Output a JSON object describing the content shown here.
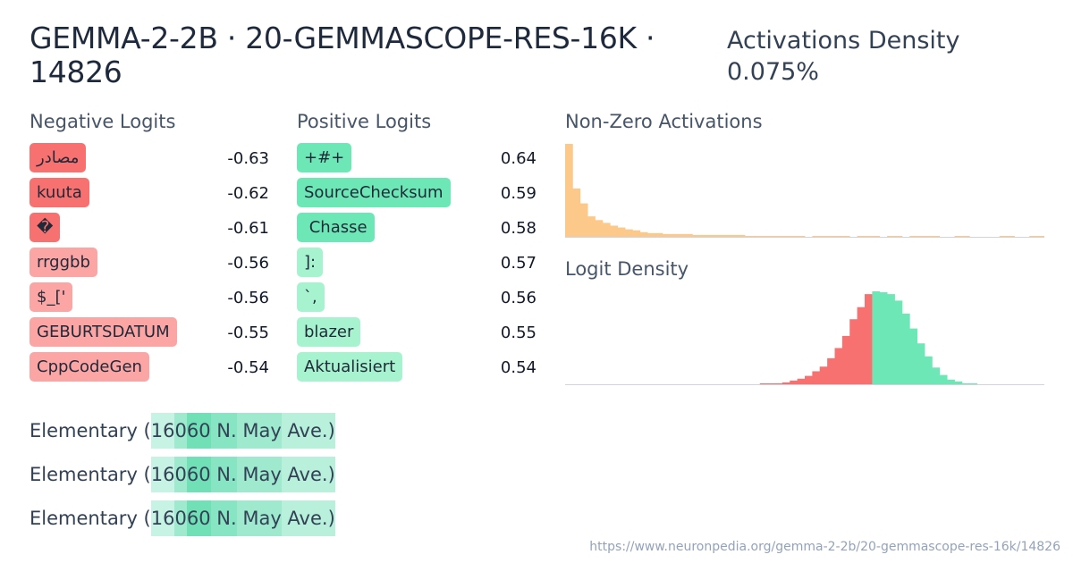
{
  "header": {
    "title": "GEMMA-2-2B · 20-GEMMASCOPE-RES-16K · 14826",
    "density_label": "Activations Density",
    "density_value": "0.075%"
  },
  "negative_logits": {
    "title": "Negative Logits",
    "items": [
      {
        "token": "مصادر",
        "value": "-0.63",
        "color": "#f87171"
      },
      {
        "token": "kuuta",
        "value": "-0.62",
        "color": "#f87171"
      },
      {
        "token": "�",
        "value": "-0.61",
        "color": "#f87171"
      },
      {
        "token": "rrggbb",
        "value": "-0.56",
        "color": "#fca5a5"
      },
      {
        "token": "$_['",
        "value": "-0.56",
        "color": "#fca5a5"
      },
      {
        "token": "GEBURTSDATUM",
        "value": "-0.55",
        "color": "#fca5a5"
      },
      {
        "token": "CppCodeGen",
        "value": "-0.54",
        "color": "#fca5a5"
      }
    ]
  },
  "positive_logits": {
    "title": "Positive Logits",
    "items": [
      {
        "token": "+#+",
        "value": "0.64",
        "color": "#6ee7b7"
      },
      {
        "token": "SourceChecksum",
        "value": "0.59",
        "color": "#6ee7b7"
      },
      {
        "token": " Chasse",
        "value": "0.58",
        "color": "#6ee7b7"
      },
      {
        "token": "]:",
        "value": "0.57",
        "color": "#a7f3d0"
      },
      {
        "token": "`,",
        "value": "0.56",
        "color": "#a7f3d0"
      },
      {
        "token": "blazer",
        "value": "0.55",
        "color": "#a7f3d0"
      },
      {
        "token": "Aktualisiert",
        "value": "0.54",
        "color": "#a7f3d0"
      }
    ]
  },
  "nonzero_activations": {
    "title": "Non-Zero Activations",
    "color": "#fdc98a",
    "values": [
      100,
      52,
      36,
      22,
      18,
      15,
      12,
      10,
      8,
      7,
      5,
      4,
      4,
      3,
      3,
      3,
      3,
      2,
      2,
      2,
      2,
      2,
      2,
      2,
      1,
      1,
      1,
      1,
      1,
      1,
      1,
      1,
      0,
      1,
      1,
      1,
      1,
      1,
      0,
      1,
      1,
      1,
      0,
      1,
      1,
      0,
      1,
      1,
      1,
      1,
      0,
      0,
      1,
      1,
      0,
      0,
      0,
      0,
      1,
      1,
      0,
      0,
      1,
      1
    ]
  },
  "logit_density": {
    "title": "Logit Density",
    "neg_color": "#f87171",
    "pos_color": "#6ee7b7",
    "values": [
      0,
      0,
      0,
      0,
      0,
      0,
      0,
      0,
      0,
      0,
      0,
      0,
      0,
      0,
      0,
      0,
      0,
      0,
      0,
      0,
      0,
      0,
      0,
      0,
      0,
      0,
      0.5,
      0.5,
      1,
      2,
      4,
      6,
      9,
      14,
      19,
      28,
      39,
      52,
      70,
      83,
      97,
      100,
      99,
      97,
      90,
      76,
      60,
      44,
      30,
      18,
      10,
      5,
      3,
      1,
      1,
      0,
      0,
      0,
      0,
      0,
      0,
      0,
      0,
      0
    ],
    "split_index": 41
  },
  "examples": [
    {
      "tokens": [
        {
          "text": "Elementary",
          "act": 0
        },
        {
          "text": " (",
          "act": 0
        },
        {
          "text": "16",
          "act": 0.2
        },
        {
          "text": "0",
          "act": 0.45
        },
        {
          "text": "60",
          "act": 0.75
        },
        {
          "text": " N.",
          "act": 0.6
        },
        {
          "text": " May",
          "act": 0.45
        },
        {
          "text": " Ave.",
          "act": 0.3
        },
        {
          "text": ")",
          "act": 0.3
        }
      ]
    },
    {
      "tokens": [
        {
          "text": "Elementary",
          "act": 0
        },
        {
          "text": " (",
          "act": 0
        },
        {
          "text": "16",
          "act": 0.2
        },
        {
          "text": "0",
          "act": 0.45
        },
        {
          "text": "60",
          "act": 0.75
        },
        {
          "text": " N.",
          "act": 0.6
        },
        {
          "text": " May",
          "act": 0.45
        },
        {
          "text": " Ave.",
          "act": 0.3
        },
        {
          "text": ")",
          "act": 0.3
        }
      ]
    },
    {
      "tokens": [
        {
          "text": "Elementary",
          "act": 0
        },
        {
          "text": " (",
          "act": 0
        },
        {
          "text": "16",
          "act": 0.2
        },
        {
          "text": "0",
          "act": 0.45
        },
        {
          "text": "60",
          "act": 0.75
        },
        {
          "text": " N.",
          "act": 0.6
        },
        {
          "text": " May",
          "act": 0.45
        },
        {
          "text": " Ave.",
          "act": 0.3
        },
        {
          "text": ")",
          "act": 0.3
        }
      ]
    }
  ],
  "footer": {
    "url": "https://www.neuronpedia.org/gemma-2-2b/20-gemmascope-res-16k/14826"
  }
}
